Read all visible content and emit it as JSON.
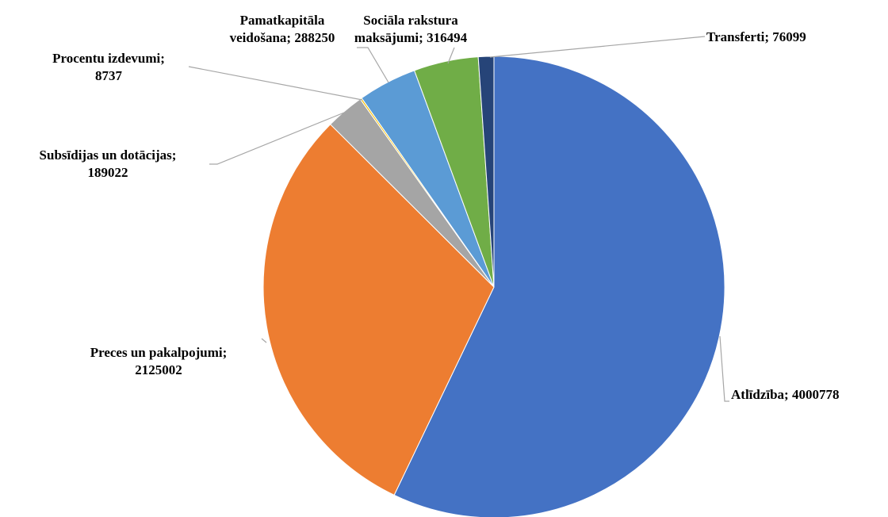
{
  "chart_data": {
    "type": "pie",
    "title": "",
    "start_angle_deg": 0,
    "direction": "clockwise",
    "slices": [
      {
        "label": "Atlīdzība",
        "value": 4000778,
        "color": "#4472c4",
        "label_text": [
          "Atlīdzība; 4000778"
        ]
      },
      {
        "label": "Preces un pakalpojumi",
        "value": 2125002,
        "color": "#ed7d31",
        "label_text": [
          "Preces un pakalpojumi;",
          "2125002"
        ]
      },
      {
        "label": "Subsīdijas un dotācijas",
        "value": 189022,
        "color": "#a5a5a5",
        "label_text": [
          "Subsīdijas un dotācijas;",
          "189022"
        ]
      },
      {
        "label": "Procentu izdevumi",
        "value": 8737,
        "color": "#ffc000",
        "label_text": [
          "Procentu izdevumi;",
          "8737"
        ]
      },
      {
        "label": "Pamatkapitāla veidošana",
        "value": 288250,
        "color": "#5b9bd5",
        "label_text": [
          "Pamatkapitāla",
          "veidošana; 288250"
        ]
      },
      {
        "label": "Sociāla rakstura maksājumi",
        "value": 316494,
        "color": "#70ad47",
        "label_text": [
          "Sociāla rakstura",
          "maksājumi; 316494"
        ]
      },
      {
        "label": "Transferti",
        "value": 76099,
        "color": "#264478",
        "label_text": [
          "Transferti; 76099"
        ]
      }
    ]
  }
}
